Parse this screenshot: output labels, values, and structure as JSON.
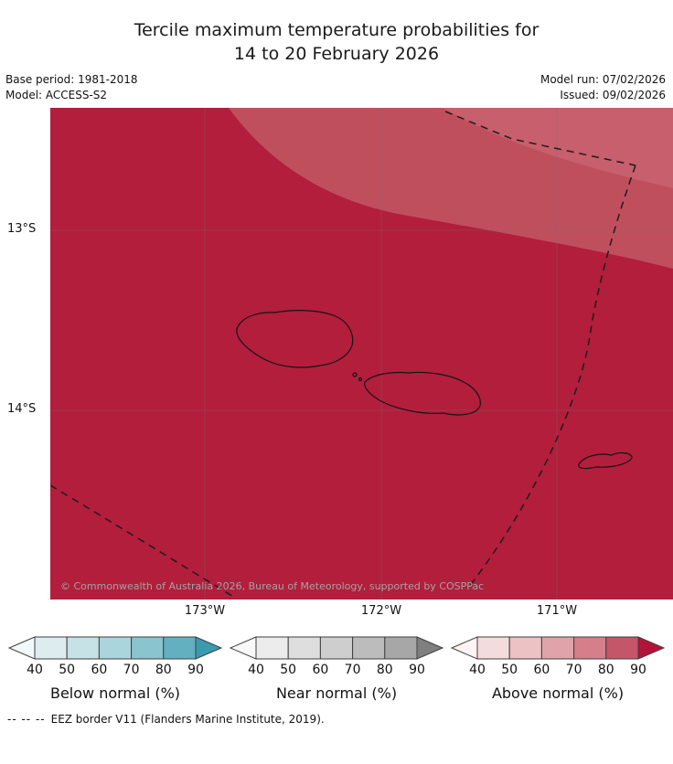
{
  "title": {
    "line1": "Tercile maximum temperature probabilities for",
    "line2": "14 to 20 February 2026"
  },
  "meta": {
    "base_period": "Base period: 1981-2018",
    "model": "Model: ACCESS-S2",
    "model_run": "Model run: 07/02/2026",
    "issued": "Issued: 09/02/2026"
  },
  "map": {
    "copyright": "© Commonwealth of Australia 2026, Bureau of Meteorology, supported by COSPPac",
    "lat_ticks": [
      "13°S",
      "14°S"
    ],
    "lon_ticks": [
      "173°W",
      "172°W",
      "171°W"
    ],
    "colors": {
      "fill_main": "#b21e3c",
      "fill_band": "#c04f5e",
      "fill_band_light": "#c75f6c",
      "grid": "#6e6e6e",
      "coastline": "#141414",
      "eez_border": "#1c1c1c"
    }
  },
  "legends": [
    {
      "label": "Below normal (%)",
      "ticks": [
        "40",
        "50",
        "60",
        "70",
        "80",
        "90"
      ],
      "left_arrow": "#f3f9fa",
      "segments": [
        "#dcecef",
        "#c6e2e7",
        "#abd5dc",
        "#8ac4cf",
        "#63b0c0"
      ],
      "right_arrow": "#3a9ab0"
    },
    {
      "label": "Near normal (%)",
      "ticks": [
        "40",
        "50",
        "60",
        "70",
        "80",
        "90"
      ],
      "left_arrow": "#f8f8f8",
      "segments": [
        "#ececec",
        "#dedede",
        "#cecece",
        "#bcbcbc",
        "#a7a7a7"
      ],
      "right_arrow": "#7f7f7f"
    },
    {
      "label": "Above normal (%)",
      "ticks": [
        "40",
        "50",
        "60",
        "70",
        "80",
        "90"
      ],
      "left_arrow": "#fdf3f3",
      "segments": [
        "#f4dcdd",
        "#ecc2c5",
        "#e1a3aa",
        "#d57f8b",
        "#c5566a"
      ],
      "right_arrow": "#b5123a"
    }
  ],
  "footer": {
    "dash_sample": "--  --  --",
    "note": "EEZ border V11 (Flanders Marine Institute, 2019)."
  }
}
